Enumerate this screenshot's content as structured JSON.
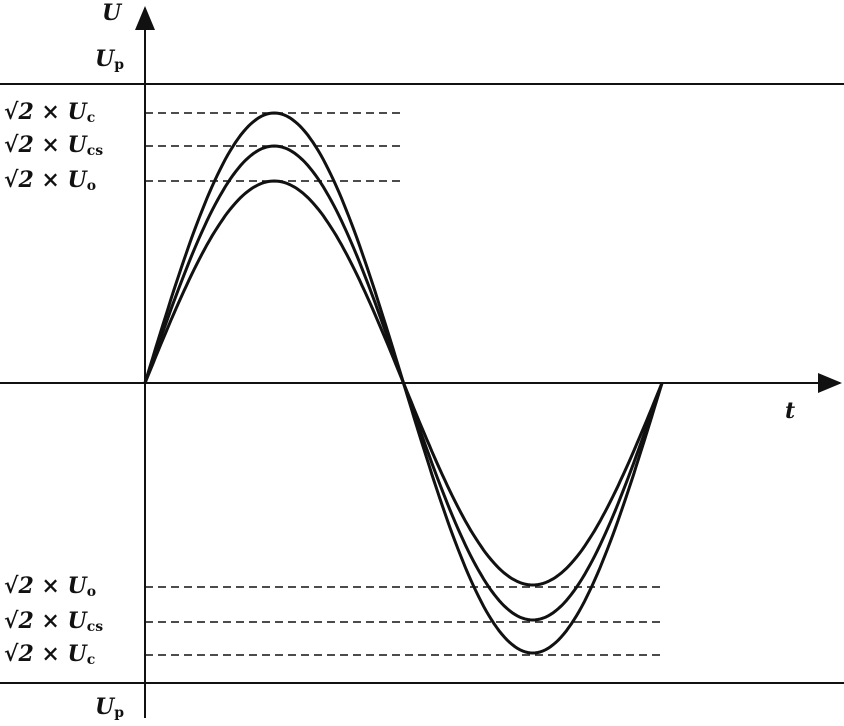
{
  "axes": {
    "y_label": "U",
    "x_label": "t"
  },
  "limits": {
    "top": {
      "main": "U",
      "sub": "p"
    },
    "bottom": {
      "main": "U",
      "sub": "p"
    }
  },
  "upper_levels": [
    {
      "main": "√2 × U",
      "sub": "c"
    },
    {
      "main": "√2 × U",
      "sub": "cs"
    },
    {
      "main": "√2 × U",
      "sub": "o"
    }
  ],
  "lower_levels": [
    {
      "main": "√2 × U",
      "sub": "o"
    },
    {
      "main": "√2 × U",
      "sub": "cs"
    },
    {
      "main": "√2 × U",
      "sub": "c"
    }
  ]
}
